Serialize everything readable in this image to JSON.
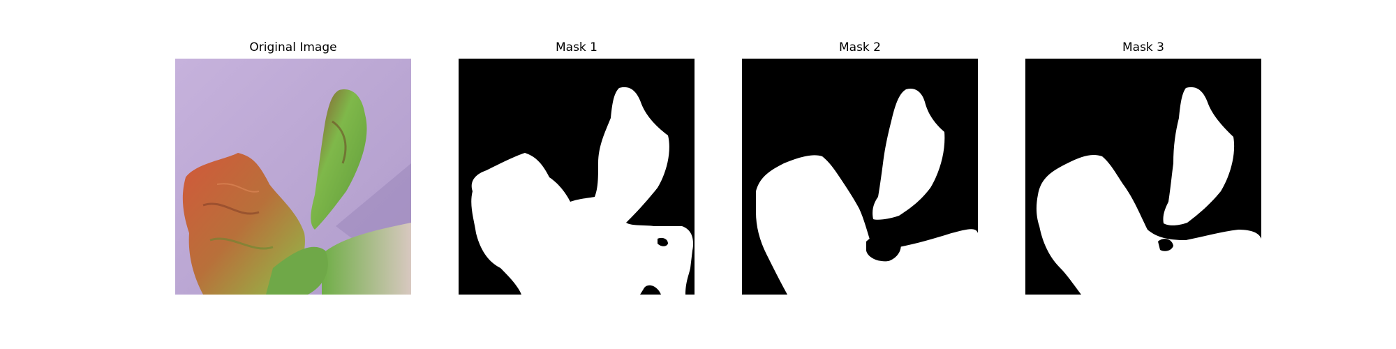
{
  "figure": {
    "panels": [
      {
        "title": "Original Image"
      },
      {
        "title": "Mask 1"
      },
      {
        "title": "Mask 2"
      },
      {
        "title": "Mask 3"
      }
    ]
  },
  "colors": {
    "background_purple": "#bca9d6",
    "mask_foreground": "#ffffff",
    "mask_background": "#000000"
  }
}
